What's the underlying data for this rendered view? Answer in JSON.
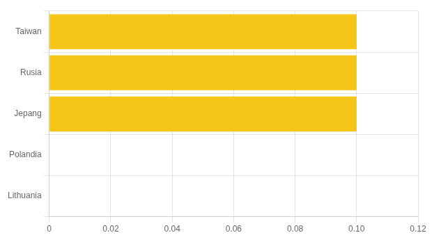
{
  "chart_data": {
    "type": "bar",
    "orientation": "horizontal",
    "categories": [
      "Lithuania",
      "Polandia",
      "Jepang",
      "Rusia",
      "Taiwan"
    ],
    "values": [
      0.0,
      0.0,
      0.1,
      0.1,
      0.1
    ],
    "color": "#F5C518",
    "xlim": [
      0,
      0.12
    ],
    "xticks": [
      0,
      0.02,
      0.04,
      0.06,
      0.08,
      {
        "value": 0.1,
        "label": "0.10"
      },
      0.12
    ],
    "grid": true
  }
}
